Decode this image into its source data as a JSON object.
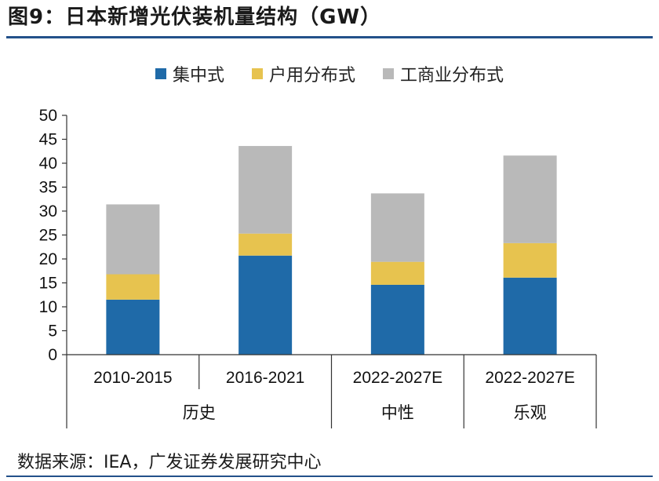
{
  "title": "图9：日本新增光伏装机量结构（GW）",
  "source": "数据来源：IEA，广发证券发展研究中心",
  "colors": {
    "utility": "#1f6aa8",
    "residential": "#e7c34f",
    "commercial": "#b9b9b9",
    "title_rule": "#23518a",
    "axis": "#333333"
  },
  "chart_data": {
    "type": "bar",
    "stacked": true,
    "categories": [
      "2010-2015",
      "2016-2021",
      "2022-2027E",
      "2022-2027E"
    ],
    "groups": [
      {
        "label": "历史",
        "categories": [
          0,
          1
        ]
      },
      {
        "label": "中性",
        "categories": [
          2
        ]
      },
      {
        "label": "乐观",
        "categories": [
          3
        ]
      }
    ],
    "series": [
      {
        "name": "集中式",
        "color": "#1f6aa8",
        "values": [
          11.5,
          20.7,
          14.6,
          16.1
        ]
      },
      {
        "name": "户用分布式",
        "color": "#e7c34f",
        "values": [
          5.3,
          4.6,
          4.8,
          7.2
        ]
      },
      {
        "name": "工商业分布式",
        "color": "#b9b9b9",
        "values": [
          14.6,
          18.3,
          14.3,
          18.3
        ]
      }
    ],
    "ylim": [
      0,
      50
    ],
    "yticks": [
      0,
      5,
      10,
      15,
      20,
      25,
      30,
      35,
      40,
      45,
      50
    ],
    "legend_position": "top",
    "grid": false
  }
}
